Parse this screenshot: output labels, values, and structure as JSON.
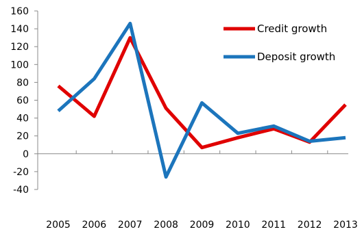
{
  "chart_data": {
    "type": "line",
    "title": "",
    "subtitle": "",
    "xlabel": "",
    "ylabel": "",
    "x": [
      "2005",
      "2006",
      "2007",
      "2008",
      "2009",
      "2010",
      "2011",
      "2012",
      "2013"
    ],
    "ylim": [
      -40,
      160
    ],
    "yticks": [
      -40,
      -20,
      0,
      20,
      40,
      60,
      80,
      100,
      120,
      140,
      160
    ],
    "grid": false,
    "legend_position": "top-right",
    "series": [
      {
        "name": "Credit growth",
        "color": "#e00000",
        "values": [
          76,
          42,
          130,
          51,
          7,
          18,
          28,
          13,
          55
        ]
      },
      {
        "name": "Deposit growth",
        "color": "#1c75bc",
        "values": [
          48,
          84,
          146,
          -26,
          57,
          23,
          31,
          14,
          18
        ]
      }
    ]
  }
}
